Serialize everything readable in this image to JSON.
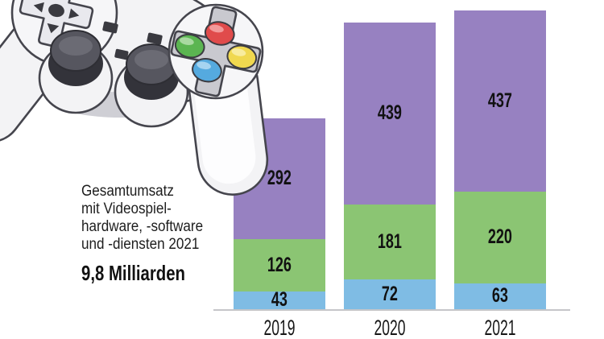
{
  "caption": {
    "lines": [
      "Gesamtumsatz",
      "mit Videospiel-",
      "hardware, -software",
      "und -diensten 2021"
    ],
    "highlight": "9,8 Milliarden"
  },
  "chart_data": {
    "type": "bar",
    "stacked": true,
    "title": "Gesamtumsatz mit Videospiel-hardware, -software und -diensten 2021: 9,8 Milliarden",
    "categories": [
      "2019",
      "2020",
      "2021"
    ],
    "series": [
      {
        "name": "blue-bottom-segment",
        "color": "#7fbce4",
        "values": [
          43,
          72,
          63
        ]
      },
      {
        "name": "green-middle-segment",
        "color": "#8bc573",
        "values": [
          126,
          181,
          220
        ]
      },
      {
        "name": "purple-top-segment",
        "color": "#9781c1",
        "values": [
          292,
          439,
          437
        ]
      }
    ],
    "totals": [
      461,
      692,
      720
    ],
    "value_labels_shown": true,
    "legend": "none",
    "grid": "off",
    "axis_color": "#c6c6c9",
    "value_label_color": "#111111"
  },
  "illustration": {
    "name": "game-controller",
    "outline_color": "#45454d",
    "body_color": "#f3f3f5",
    "pad_color": "#f6f6f8",
    "dark_color": "#3a3a40",
    "stick_color": "#56565f",
    "button_colors": {
      "top": "#e04b4b",
      "left": "#5bb551",
      "right": "#f0d84f",
      "bottom": "#55aadf"
    }
  }
}
